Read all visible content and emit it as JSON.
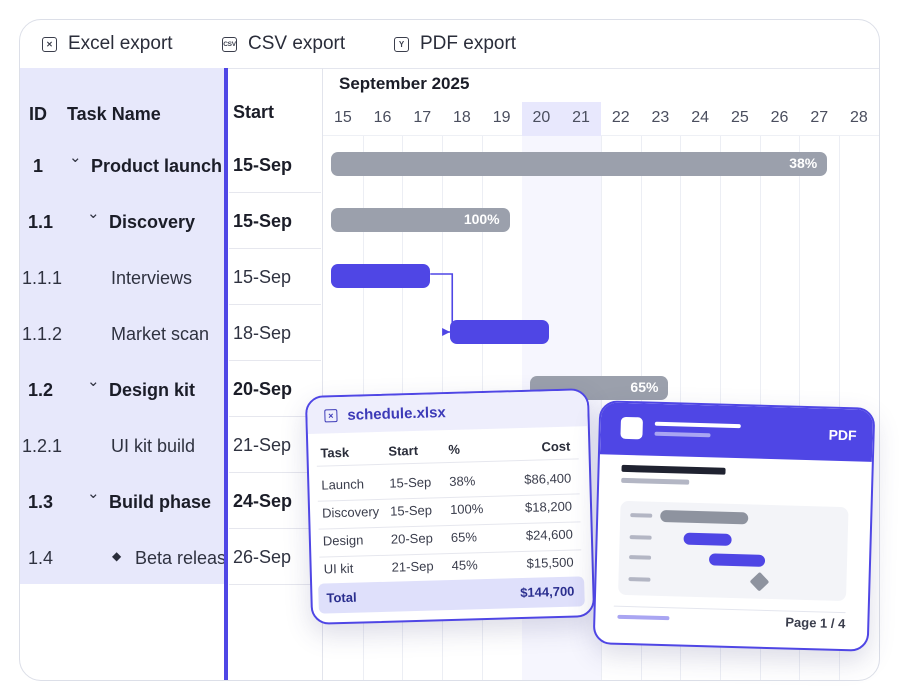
{
  "toolbar": {
    "excel_label": "Excel export",
    "csv_label": "CSV export",
    "pdf_label": "PDF export",
    "excel_icon": "excel-icon",
    "csv_icon": "csv-icon",
    "pdf_icon": "pdf-icon",
    "excel_glyph": "✕",
    "csv_glyph": "CSV",
    "pdf_glyph": "Y"
  },
  "grid": {
    "headers": {
      "id": "ID",
      "task": "Task Name",
      "start": "Start"
    },
    "rows": [
      {
        "id": "1",
        "name": "Product launch",
        "start": "15-Sep",
        "bold": true,
        "expanded": true
      },
      {
        "id": "1.1",
        "name": "Discovery",
        "start": "15-Sep",
        "bold": true,
        "expanded": true
      },
      {
        "id": "1.1.1",
        "name": "Interviews",
        "start": "15-Sep",
        "bold": false
      },
      {
        "id": "1.1.2",
        "name": "Market scan",
        "start": "18-Sep",
        "bold": false
      },
      {
        "id": "1.2",
        "name": "Design kit",
        "start": "20-Sep",
        "bold": true,
        "expanded": true
      },
      {
        "id": "1.2.1",
        "name": "UI kit build",
        "start": "21-Sep",
        "bold": false
      },
      {
        "id": "1.3",
        "name": "Build phase",
        "start": "24-Sep",
        "bold": true,
        "expanded": true
      },
      {
        "id": "1.4",
        "name": "Beta release",
        "start": "26-Sep",
        "bold": false,
        "milestone": true
      }
    ]
  },
  "timeline": {
    "month": "September 2025",
    "days": [
      "15",
      "16",
      "17",
      "18",
      "19",
      "20",
      "21",
      "22",
      "23",
      "24",
      "25",
      "26",
      "27",
      "28"
    ],
    "highlight_days": [
      "20",
      "21"
    ],
    "bars": [
      {
        "row": 0,
        "start_day": 15,
        "end_day": 27.5,
        "kind": "summary",
        "progress": "38%"
      },
      {
        "row": 1,
        "start_day": 15,
        "end_day": 19.5,
        "kind": "summary",
        "progress": "100%"
      },
      {
        "row": 2,
        "start_day": 15,
        "end_day": 17.5,
        "kind": "task",
        "progress": ""
      },
      {
        "row": 3,
        "start_day": 18,
        "end_day": 20.5,
        "kind": "task",
        "progress": ""
      },
      {
        "row": 4,
        "start_day": 20,
        "end_day": 23.5,
        "kind": "summary",
        "progress": "65%"
      }
    ]
  },
  "excel_preview": {
    "filename": "schedule.xlsx",
    "headers": [
      "Task",
      "Start",
      "%",
      "Cost"
    ],
    "rows": [
      [
        "Launch",
        "15-Sep",
        "38%",
        "$86,400"
      ],
      [
        "Discovery",
        "15-Sep",
        "100%",
        "$18,200"
      ],
      [
        "Design",
        "20-Sep",
        "65%",
        "$24,600"
      ],
      [
        "UI kit",
        "21-Sep",
        "45%",
        "$15,500"
      ]
    ],
    "total_label": "Total",
    "total_value": "$144,700"
  },
  "pdf_preview": {
    "badge": "PDF",
    "page": "Page 1 / 4"
  }
}
